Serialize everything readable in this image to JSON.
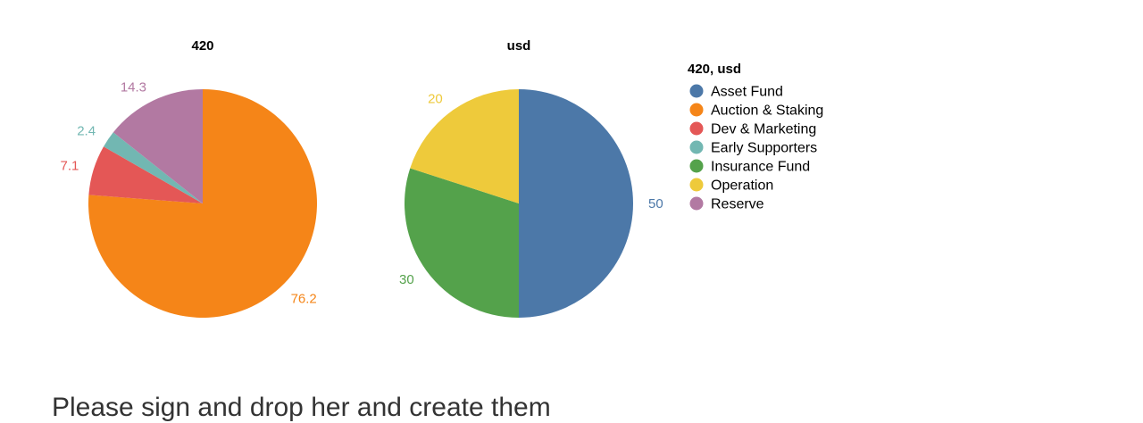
{
  "chart_data": [
    {
      "type": "pie",
      "title": "420",
      "categories": [
        "Auction & Staking",
        "Dev & Marketing",
        "Early Supporters",
        "Reserve"
      ],
      "values": [
        76.2,
        7.1,
        2.4,
        14.3
      ],
      "labels": [
        "76.2",
        "7.1",
        "2.4",
        "14.3"
      ]
    },
    {
      "type": "pie",
      "title": "usd",
      "categories": [
        "Asset Fund",
        "Insurance Fund",
        "Operation"
      ],
      "values": [
        50,
        30,
        20
      ],
      "labels": [
        "50",
        "30",
        "20"
      ]
    }
  ],
  "legend": {
    "title": "420, usd",
    "placement": "right",
    "items": [
      {
        "label": "Asset Fund",
        "color": "#4c78a8"
      },
      {
        "label": "Auction & Staking",
        "color": "#f58518"
      },
      {
        "label": "Dev & Marketing",
        "color": "#e45756"
      },
      {
        "label": "Early Supporters",
        "color": "#72b7b2"
      },
      {
        "label": "Insurance Fund",
        "color": "#54a24b"
      },
      {
        "label": "Operation",
        "color": "#eeca3b"
      },
      {
        "label": "Reserve",
        "color": "#b279a2"
      }
    ]
  },
  "caption": "Please sign and drop her and create them"
}
